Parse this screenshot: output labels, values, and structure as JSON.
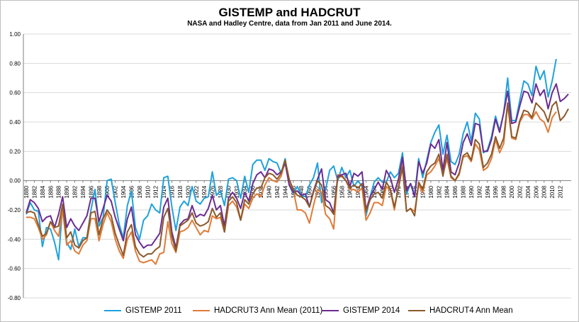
{
  "chart_data": {
    "type": "line",
    "title": "GISTEMP and HADCRUT",
    "subtitle": "NASA and Hadley Centre, data from Jan 2011 and June 2014.",
    "xlabel": "",
    "ylabel": "",
    "ylim": [
      -0.8,
      1.0
    ],
    "ytick_labels": [
      "1.00",
      "0.80",
      "0.60",
      "0.40",
      "0.20",
      "0.00",
      "-0.20",
      "-0.40",
      "-0.60",
      "-0.80"
    ],
    "ytick_values": [
      1.0,
      0.8,
      0.6,
      0.4,
      0.2,
      0.0,
      -0.2,
      -0.4,
      -0.6,
      -0.8
    ],
    "xtick_labels": [
      "1880",
      "1882",
      "1884",
      "1886",
      "1888",
      "1890",
      "1892",
      "1894",
      "1896",
      "1898",
      "1900",
      "1902",
      "1904",
      "1906",
      "1908",
      "1910",
      "1912",
      "1914",
      "1916",
      "1918",
      "1920",
      "1922",
      "1924",
      "1926",
      "1928",
      "1930",
      "1932",
      "1934",
      "1936",
      "1938",
      "1940",
      "1942",
      "1944",
      "1946",
      "1948",
      "1950",
      "1952",
      "1954",
      "1956",
      "1958",
      "1960",
      "1962",
      "1964",
      "1966",
      "1968",
      "1970",
      "1972",
      "1974",
      "1976",
      "1978",
      "1980",
      "1982",
      "1984",
      "1986",
      "1988",
      "1990",
      "1992",
      "1994",
      "1996",
      "1998",
      "2000",
      "2002",
      "2004",
      "2006",
      "2008",
      "2010",
      "2012"
    ],
    "grid": true,
    "legend_position": "bottom",
    "series": [
      {
        "name": "GISTEMP 2011",
        "color": "#1fa2dc",
        "start_year": 1880,
        "values": [
          -0.23,
          -0.15,
          -0.2,
          -0.21,
          -0.45,
          -0.32,
          -0.33,
          -0.42,
          -0.54,
          -0.17,
          -0.42,
          -0.47,
          -0.33,
          -0.45,
          -0.39,
          -0.39,
          -0.2,
          -0.06,
          -0.31,
          -0.25,
          0.0,
          0.01,
          -0.15,
          -0.3,
          -0.39,
          -0.17,
          -0.07,
          -0.32,
          -0.4,
          -0.27,
          -0.24,
          -0.16,
          -0.2,
          -0.22,
          0.02,
          0.03,
          -0.18,
          -0.34,
          -0.18,
          -0.14,
          -0.17,
          -0.04,
          -0.14,
          -0.16,
          -0.12,
          -0.11,
          0.06,
          -0.1,
          -0.07,
          -0.17,
          0.01,
          0.02,
          0.0,
          -0.12,
          0.03,
          -0.08,
          0.11,
          0.14,
          0.14,
          0.07,
          0.15,
          0.13,
          0.12,
          0.05,
          0.15,
          -0.03,
          -0.09,
          -0.04,
          -0.1,
          -0.11,
          -0.03,
          0.02,
          0.12,
          -0.15,
          -0.06,
          0.07,
          0.1,
          0.0,
          0.09,
          0.02,
          0.07,
          -0.04,
          0.0,
          -0.04,
          -0.24,
          -0.11,
          -0.01,
          0.02,
          -0.01,
          -0.01,
          0.06,
          0.02,
          0.05,
          0.19,
          -0.09,
          -0.02,
          -0.1,
          0.15,
          0.02,
          0.14,
          0.26,
          0.33,
          0.38,
          0.18,
          0.31,
          0.13,
          0.11,
          0.18,
          0.32,
          0.4,
          0.27,
          0.46,
          0.42,
          0.19,
          0.21,
          0.3,
          0.44,
          0.34,
          0.46,
          0.7,
          0.41,
          0.41,
          0.55,
          0.68,
          0.66,
          0.58,
          0.78,
          0.69,
          0.75,
          0.57,
          0.68,
          0.83
        ]
      },
      {
        "name": "HADCRUT3 Ann Mean (2011)",
        "color": "#e07b39",
        "start_year": 1880,
        "values": [
          -0.25,
          -0.25,
          -0.26,
          -0.32,
          -0.4,
          -0.37,
          -0.28,
          -0.34,
          -0.38,
          -0.2,
          -0.44,
          -0.41,
          -0.48,
          -0.5,
          -0.44,
          -0.41,
          -0.26,
          -0.26,
          -0.41,
          -0.3,
          -0.22,
          -0.28,
          -0.4,
          -0.48,
          -0.53,
          -0.4,
          -0.35,
          -0.48,
          -0.55,
          -0.56,
          -0.55,
          -0.54,
          -0.57,
          -0.5,
          -0.49,
          -0.28,
          -0.43,
          -0.49,
          -0.35,
          -0.34,
          -0.32,
          -0.27,
          -0.32,
          -0.37,
          -0.34,
          -0.35,
          -0.24,
          -0.26,
          -0.25,
          -0.35,
          -0.17,
          -0.14,
          -0.18,
          -0.27,
          -0.16,
          -0.19,
          -0.12,
          -0.09,
          -0.11,
          -0.03,
          0.02,
          0.0,
          -0.01,
          0.03,
          0.13,
          -0.02,
          -0.06,
          -0.2,
          -0.2,
          -0.22,
          -0.29,
          -0.17,
          -0.06,
          -0.08,
          -0.23,
          -0.26,
          -0.33,
          0.04,
          0.04,
          0.0,
          -0.06,
          -0.06,
          -0.08,
          -0.05,
          -0.27,
          -0.22,
          -0.15,
          -0.15,
          -0.17,
          -0.04,
          -0.07,
          -0.2,
          -0.04,
          0.13,
          -0.21,
          -0.19,
          -0.21,
          -0.03,
          -0.08,
          0.04,
          0.06,
          0.1,
          0.15,
          0.04,
          0.15,
          0.02,
          0.0,
          0.04,
          0.16,
          0.17,
          0.13,
          0.25,
          0.21,
          0.07,
          0.09,
          0.15,
          0.28,
          0.19,
          0.25,
          0.52,
          0.29,
          0.28,
          0.4,
          0.45,
          0.45,
          0.42,
          0.47,
          0.42,
          0.4,
          0.33,
          0.43,
          0.47
        ]
      },
      {
        "name": "GISTEMP 2014",
        "color": "#6b2c91",
        "start_year": 1880,
        "values": [
          -0.22,
          -0.13,
          -0.15,
          -0.19,
          -0.28,
          -0.25,
          -0.24,
          -0.32,
          -0.23,
          -0.11,
          -0.32,
          -0.26,
          -0.31,
          -0.34,
          -0.29,
          -0.24,
          -0.12,
          -0.12,
          -0.28,
          -0.19,
          -0.1,
          -0.14,
          -0.25,
          -0.33,
          -0.41,
          -0.26,
          -0.18,
          -0.37,
          -0.42,
          -0.46,
          -0.44,
          -0.44,
          -0.4,
          -0.36,
          -0.18,
          -0.12,
          -0.35,
          -0.46,
          -0.3,
          -0.27,
          -0.26,
          -0.17,
          -0.25,
          -0.23,
          -0.24,
          -0.19,
          -0.1,
          -0.2,
          -0.17,
          -0.31,
          -0.12,
          -0.08,
          -0.12,
          -0.19,
          -0.08,
          -0.14,
          -0.02,
          0.04,
          0.06,
          0.02,
          0.08,
          0.07,
          0.04,
          0.06,
          0.12,
          -0.03,
          -0.08,
          -0.07,
          -0.1,
          -0.09,
          -0.18,
          -0.07,
          0.01,
          0.08,
          -0.13,
          -0.15,
          -0.22,
          0.03,
          0.04,
          0.05,
          -0.04,
          0.05,
          0.03,
          0.06,
          -0.2,
          -0.11,
          -0.06,
          -0.01,
          -0.06,
          0.07,
          0.02,
          -0.08,
          0.01,
          0.16,
          -0.07,
          -0.02,
          -0.11,
          0.13,
          0.05,
          0.12,
          0.25,
          0.22,
          0.28,
          0.07,
          0.26,
          0.06,
          0.04,
          0.12,
          0.26,
          0.32,
          0.24,
          0.39,
          0.38,
          0.2,
          0.2,
          0.28,
          0.42,
          0.33,
          0.46,
          0.61,
          0.39,
          0.4,
          0.51,
          0.61,
          0.6,
          0.53,
          0.66,
          0.58,
          0.62,
          0.49,
          0.6,
          0.66,
          0.54,
          0.56,
          0.59
        ]
      },
      {
        "name": "HADCRUT4 Ann Mean",
        "color": "#8b5a2b",
        "start_year": 1880,
        "values": [
          -0.22,
          -0.21,
          -0.22,
          -0.3,
          -0.38,
          -0.36,
          -0.28,
          -0.32,
          -0.31,
          -0.16,
          -0.39,
          -0.35,
          -0.44,
          -0.46,
          -0.41,
          -0.39,
          -0.22,
          -0.21,
          -0.37,
          -0.26,
          -0.2,
          -0.24,
          -0.36,
          -0.44,
          -0.51,
          -0.35,
          -0.3,
          -0.45,
          -0.5,
          -0.52,
          -0.5,
          -0.5,
          -0.47,
          -0.45,
          -0.25,
          -0.19,
          -0.38,
          -0.48,
          -0.31,
          -0.29,
          -0.27,
          -0.22,
          -0.29,
          -0.31,
          -0.3,
          -0.28,
          -0.19,
          -0.25,
          -0.22,
          -0.35,
          -0.14,
          -0.11,
          -0.15,
          -0.27,
          -0.13,
          -0.16,
          -0.09,
          -0.05,
          -0.05,
          0.02,
          0.05,
          0.04,
          0.01,
          0.05,
          0.14,
          0.01,
          -0.06,
          -0.1,
          -0.11,
          -0.13,
          -0.18,
          -0.08,
          0.0,
          -0.03,
          -0.17,
          -0.19,
          -0.23,
          0.02,
          0.03,
          0.0,
          -0.05,
          -0.03,
          -0.05,
          -0.02,
          -0.21,
          -0.13,
          -0.09,
          -0.08,
          -0.12,
          -0.01,
          -0.06,
          -0.18,
          -0.05,
          0.09,
          -0.21,
          -0.19,
          -0.24,
          -0.01,
          -0.06,
          0.06,
          0.1,
          0.12,
          0.18,
          0.03,
          0.18,
          0.03,
          0.0,
          0.05,
          0.17,
          0.19,
          0.14,
          0.28,
          0.25,
          0.09,
          0.12,
          0.18,
          0.3,
          0.22,
          0.29,
          0.53,
          0.3,
          0.29,
          0.41,
          0.48,
          0.47,
          0.43,
          0.53,
          0.5,
          0.47,
          0.4,
          0.51,
          0.54,
          0.41,
          0.44,
          0.49
        ]
      }
    ]
  }
}
